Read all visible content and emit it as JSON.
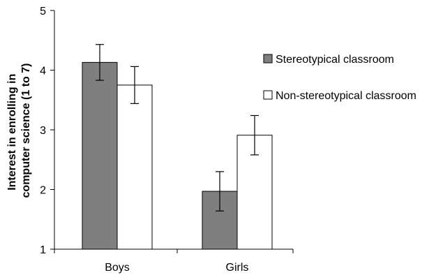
{
  "chart_data": {
    "type": "bar",
    "title": "",
    "xlabel": "",
    "ylabel_lines": [
      "Interest in enrolling in",
      "computer science (1 to 7)"
    ],
    "ylim": [
      1,
      5
    ],
    "yticks": [
      1,
      2,
      3,
      4,
      5
    ],
    "categories": [
      "Boys",
      "Girls"
    ],
    "series": [
      {
        "name": "Stereotypical classroom",
        "color": "#7f7f7f",
        "values": [
          4.13,
          1.97
        ],
        "errors": [
          0.3,
          0.33
        ]
      },
      {
        "name": "Non-stereotypical classroom",
        "color": "#ffffff",
        "values": [
          3.75,
          2.91
        ],
        "errors": [
          0.31,
          0.33
        ]
      }
    ],
    "grid": false,
    "legend_position": "right",
    "bar_outline_color": "#000000"
  }
}
